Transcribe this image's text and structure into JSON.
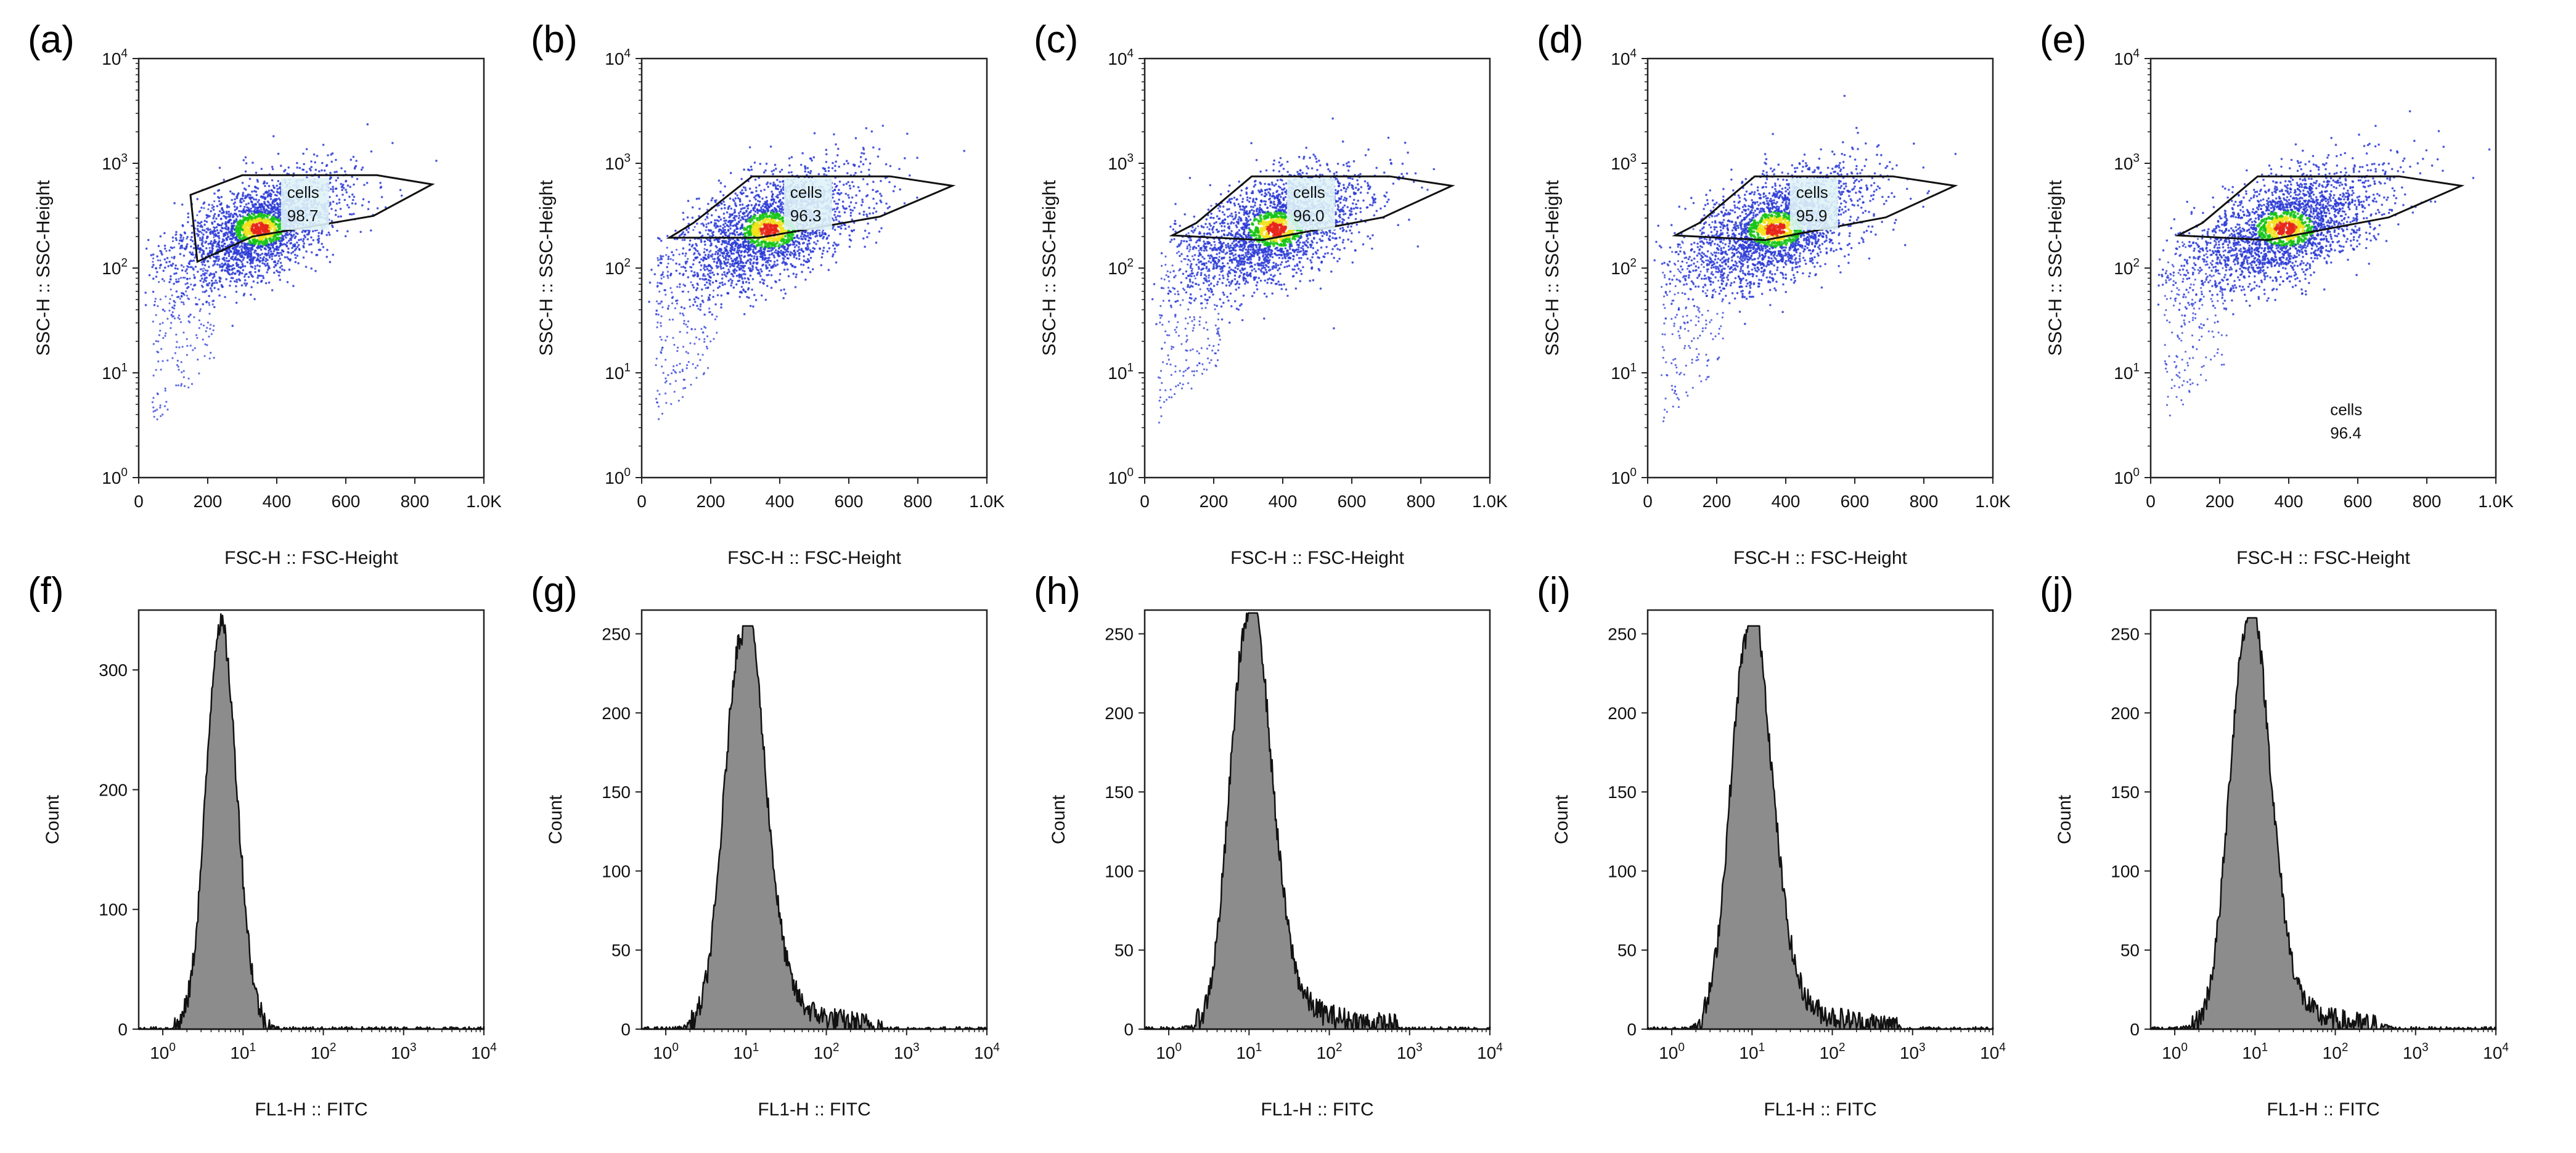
{
  "colors": {
    "dot": "#2b3bd6",
    "dense_green": "#18c418",
    "dense_yellow": "#f2e21c",
    "dense_red": "#e8261a",
    "label_bg": "#dff3f7",
    "histogram_fill": "#8c8c8c",
    "axis": "#222222"
  },
  "chart_data": [
    {
      "id": "a",
      "panel_label": "(a)",
      "type": "scatter",
      "title": "",
      "xlabel": "FSC-H :: FSC-Height",
      "ylabel": "SSC-H :: SSC-Height",
      "xlim": [
        0,
        1000
      ],
      "ylim_log10": [
        0,
        4
      ],
      "x_ticks": [
        "0",
        "200",
        "400",
        "600",
        "800",
        "1.0K"
      ],
      "y_ticks": [
        "10^0",
        "10^1",
        "10^2",
        "10^3",
        "10^4"
      ],
      "gate_name": "cells",
      "gate_percent": "98.7",
      "gate_label_position": "inside",
      "gate_polygon": [
        [
          170,
          1.15
        ],
        [
          150,
          5.0
        ],
        [
          300,
          7.7
        ],
        [
          690,
          7.7
        ],
        [
          850,
          6.3
        ],
        [
          680,
          3.15
        ],
        [
          330,
          2.0
        ]
      ],
      "population_center": [
        350,
        2.35
      ],
      "population_spread": [
        130,
        0.22
      ]
    },
    {
      "id": "b",
      "panel_label": "(b)",
      "type": "scatter",
      "title": "",
      "xlabel": "FSC-H :: FSC-Height",
      "ylabel": "SSC-H :: SSC-Height",
      "xlim": [
        0,
        1000
      ],
      "ylim_log10": [
        0,
        4
      ],
      "x_ticks": [
        "0",
        "200",
        "400",
        "600",
        "800",
        "1.0K"
      ],
      "y_ticks": [
        "10^0",
        "10^1",
        "10^2",
        "10^3",
        "10^4"
      ],
      "gate_name": "cells",
      "gate_percent": "96.3",
      "gate_label_position": "inside",
      "gate_polygon": [
        [
          80,
          1.95
        ],
        [
          150,
          2.7
        ],
        [
          320,
          7.5
        ],
        [
          720,
          7.5
        ],
        [
          900,
          6.1
        ],
        [
          690,
          3.1
        ],
        [
          340,
          1.95
        ]
      ],
      "population_center": [
        370,
        2.3
      ],
      "population_spread": [
        140,
        0.24
      ]
    },
    {
      "id": "c",
      "panel_label": "(c)",
      "type": "scatter",
      "title": "",
      "xlabel": "FSC-H :: FSC-Height",
      "ylabel": "SSC-H :: SSC-Height",
      "xlim": [
        0,
        1000
      ],
      "ylim_log10": [
        0,
        4
      ],
      "x_ticks": [
        "0",
        "200",
        "400",
        "600",
        "800",
        "1.0K"
      ],
      "y_ticks": [
        "10^0",
        "10^1",
        "10^2",
        "10^3",
        "10^4"
      ],
      "gate_name": "cells",
      "gate_percent": "96.0",
      "gate_label_position": "inside",
      "gate_polygon": [
        [
          80,
          2.05
        ],
        [
          150,
          2.7
        ],
        [
          310,
          7.5
        ],
        [
          710,
          7.5
        ],
        [
          890,
          6.1
        ],
        [
          690,
          3.05
        ],
        [
          340,
          1.85
        ]
      ],
      "population_center": [
        380,
        2.35
      ],
      "population_spread": [
        140,
        0.24
      ]
    },
    {
      "id": "d",
      "panel_label": "(d)",
      "type": "scatter",
      "title": "",
      "xlabel": "FSC-H :: FSC-Height",
      "ylabel": "SSC-H :: SSC-Height",
      "xlim": [
        0,
        1000
      ],
      "ylim_log10": [
        0,
        4
      ],
      "x_ticks": [
        "0",
        "200",
        "400",
        "600",
        "800",
        "1.0K"
      ],
      "y_ticks": [
        "10^0",
        "10^1",
        "10^2",
        "10^3",
        "10^4"
      ],
      "gate_name": "cells",
      "gate_percent": "95.9",
      "gate_label_position": "inside",
      "gate_polygon": [
        [
          80,
          2.05
        ],
        [
          150,
          2.7
        ],
        [
          310,
          7.5
        ],
        [
          710,
          7.5
        ],
        [
          890,
          6.1
        ],
        [
          690,
          3.05
        ],
        [
          340,
          1.85
        ]
      ],
      "population_center": [
        370,
        2.35
      ],
      "population_spread": [
        140,
        0.24
      ]
    },
    {
      "id": "e",
      "panel_label": "(e)",
      "type": "scatter",
      "title": "",
      "xlabel": "FSC-H :: FSC-Height",
      "ylabel": "SSC-H :: SSC-Height",
      "xlim": [
        0,
        1000
      ],
      "ylim_log10": [
        0,
        4
      ],
      "x_ticks": [
        "0",
        "200",
        "400",
        "600",
        "800",
        "1.0K"
      ],
      "y_ticks": [
        "10^0",
        "10^1",
        "10^2",
        "10^3",
        "10^4"
      ],
      "gate_name": "cells",
      "gate_percent": "96.4",
      "gate_label_position": "below",
      "gate_polygon": [
        [
          80,
          2.05
        ],
        [
          150,
          2.7
        ],
        [
          310,
          7.5
        ],
        [
          720,
          7.5
        ],
        [
          900,
          6.1
        ],
        [
          690,
          3.05
        ],
        [
          340,
          1.85
        ]
      ],
      "population_center": [
        390,
        2.4
      ],
      "population_spread": [
        150,
        0.24
      ]
    },
    {
      "id": "f",
      "panel_label": "(f)",
      "type": "histogram",
      "title": "",
      "xlabel": "FL1-H :: FITC",
      "ylabel": "Count",
      "xlim_log10": [
        -0.3,
        4
      ],
      "ylim": [
        0,
        350
      ],
      "x_ticks": [
        "10^0",
        "10^1",
        "10^2",
        "10^3",
        "10^4"
      ],
      "y_ticks": [
        "0",
        "100",
        "200",
        "300"
      ],
      "y_tick_values": [
        0,
        100,
        200,
        300
      ],
      "peak_log10": 0.72,
      "peak_count": 340,
      "left_width": 0.18,
      "right_width": 0.2,
      "tail_level": 0,
      "tail_decay": 0.3,
      "tail_end_log10": 1.6
    },
    {
      "id": "g",
      "panel_label": "(g)",
      "type": "histogram",
      "title": "",
      "xlabel": "FL1-H :: FITC",
      "ylabel": "Count",
      "xlim_log10": [
        -0.3,
        4
      ],
      "ylim": [
        0,
        265
      ],
      "x_ticks": [
        "10^0",
        "10^1",
        "10^2",
        "10^3",
        "10^4"
      ],
      "y_ticks": [
        "0",
        "50",
        "100",
        "150",
        "200",
        "250"
      ],
      "y_tick_values": [
        0,
        50,
        100,
        150,
        200,
        250
      ],
      "peak_log10": 0.95,
      "peak_count": 250,
      "left_width": 0.22,
      "right_width": 0.26,
      "tail_level": 0.2,
      "tail_decay": 0.55,
      "tail_end_log10": 2.7
    },
    {
      "id": "h",
      "panel_label": "(h)",
      "type": "histogram",
      "title": "",
      "xlabel": "FL1-H :: FITC",
      "ylabel": "Count",
      "xlim_log10": [
        -0.3,
        4
      ],
      "ylim": [
        0,
        265
      ],
      "x_ticks": [
        "10^0",
        "10^1",
        "10^2",
        "10^3",
        "10^4"
      ],
      "y_ticks": [
        "0",
        "50",
        "100",
        "150",
        "200",
        "250"
      ],
      "y_tick_values": [
        0,
        50,
        100,
        150,
        200,
        250
      ],
      "peak_log10": 0.98,
      "peak_count": 258,
      "left_width": 0.22,
      "right_width": 0.27,
      "tail_level": 0.18,
      "tail_decay": 0.6,
      "tail_end_log10": 2.85
    },
    {
      "id": "i",
      "panel_label": "(i)",
      "type": "histogram",
      "title": "",
      "xlabel": "FL1-H :: FITC",
      "ylabel": "Count",
      "xlim_log10": [
        -0.3,
        4
      ],
      "ylim": [
        0,
        265
      ],
      "x_ticks": [
        "10^0",
        "10^1",
        "10^2",
        "10^3",
        "10^4"
      ],
      "y_ticks": [
        "0",
        "50",
        "100",
        "150",
        "200",
        "250"
      ],
      "y_tick_values": [
        0,
        50,
        100,
        150,
        200,
        250
      ],
      "peak_log10": 0.95,
      "peak_count": 250,
      "left_width": 0.22,
      "right_width": 0.27,
      "tail_level": 0.18,
      "tail_decay": 0.6,
      "tail_end_log10": 2.85
    },
    {
      "id": "j",
      "panel_label": "(j)",
      "type": "histogram",
      "title": "",
      "xlabel": "FL1-H :: FITC",
      "ylabel": "Count",
      "xlim_log10": [
        -0.3,
        4
      ],
      "ylim": [
        0,
        265
      ],
      "x_ticks": [
        "10^0",
        "10^1",
        "10^2",
        "10^3",
        "10^4"
      ],
      "y_ticks": [
        "0",
        "50",
        "100",
        "150",
        "200",
        "250"
      ],
      "y_tick_values": [
        0,
        50,
        100,
        150,
        200,
        250
      ],
      "peak_log10": 0.9,
      "peak_count": 255,
      "left_width": 0.22,
      "right_width": 0.27,
      "tail_level": 0.16,
      "tail_decay": 0.55,
      "tail_end_log10": 2.7
    }
  ]
}
